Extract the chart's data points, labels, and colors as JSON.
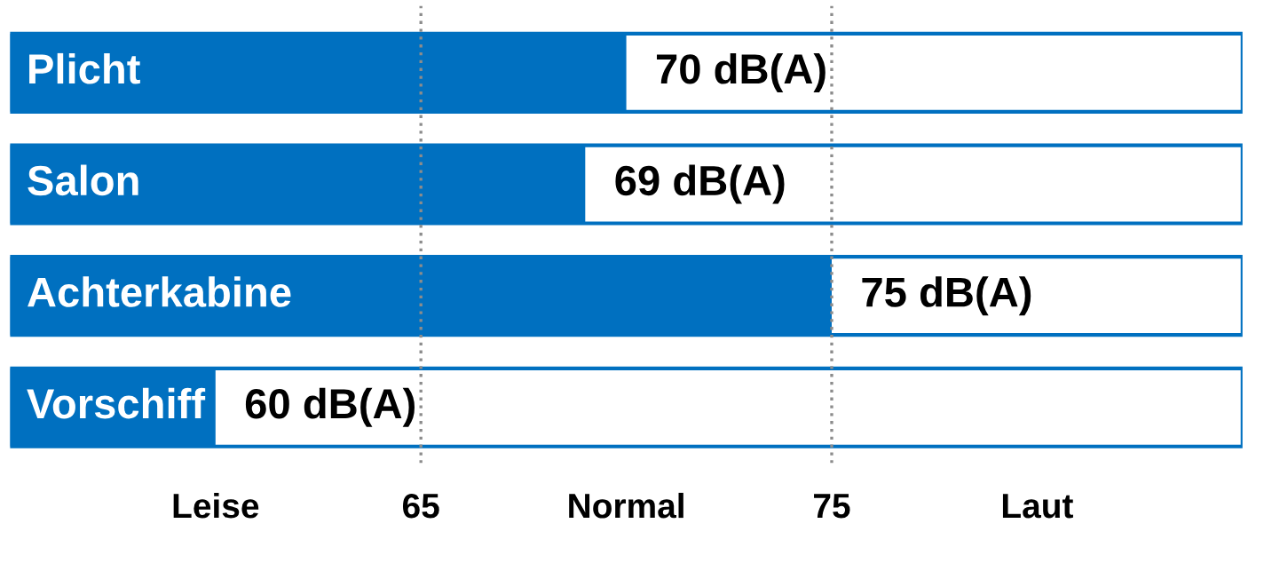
{
  "chart_data": {
    "type": "bar",
    "orientation": "horizontal",
    "categories": [
      "Plicht",
      "Salon",
      "Achterkabine",
      "Vorschiff"
    ],
    "values": [
      70,
      69,
      75,
      60
    ],
    "value_labels": [
      "70 dB(A)",
      "69 dB(A)",
      "75 dB(A)",
      "60 dB(A)"
    ],
    "color": "#0070c0",
    "xlim": [
      55,
      85
    ],
    "xticks": [
      {
        "value": 60,
        "label": "Leise"
      },
      65,
      {
        "value": 70,
        "label": "Normal"
      },
      75,
      {
        "value": 80,
        "label": "Laut"
      }
    ],
    "ref_lines": [
      {
        "axis": "x",
        "value": 65,
        "color": "#8c8c8c",
        "line_style": "dotted"
      },
      {
        "axis": "x",
        "value": 75,
        "color": "#8c8c8c",
        "line_style": "dotted"
      }
    ],
    "grid": false
  }
}
